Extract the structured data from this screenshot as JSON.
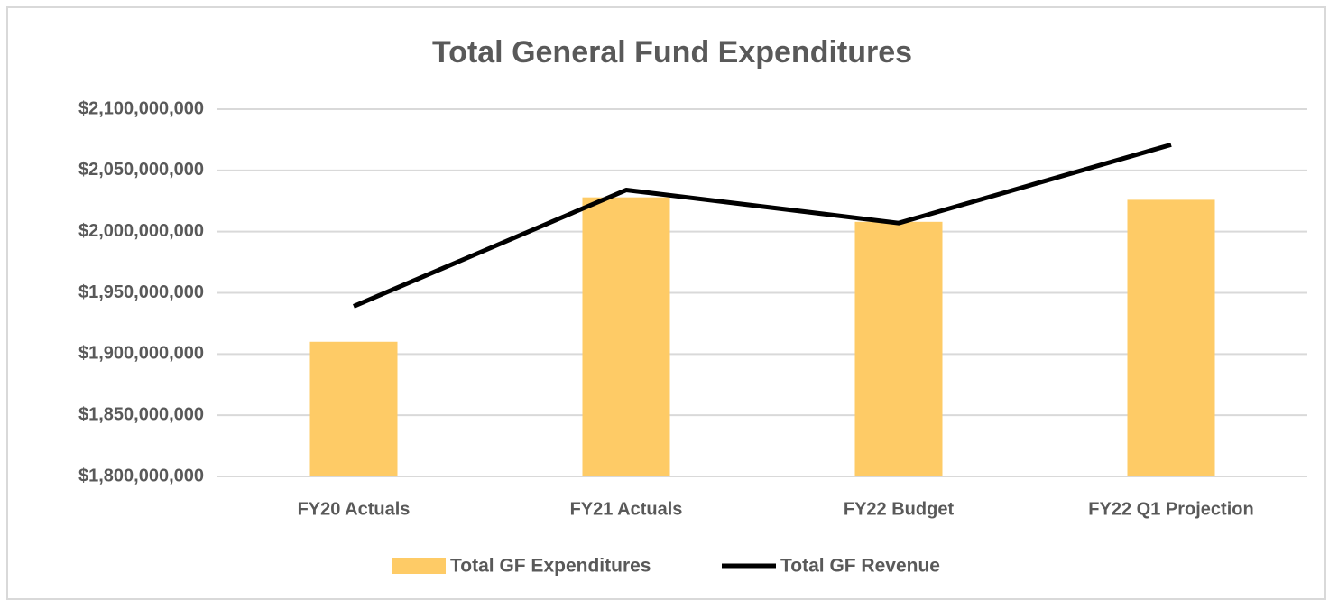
{
  "chart_data": {
    "type": "bar",
    "title": "Total General Fund Expenditures",
    "categories": [
      "FY20 Actuals",
      "FY21 Actuals",
      "FY22 Budget",
      "FY22 Q1 Projection"
    ],
    "series": [
      {
        "name": "Total GF Expenditures",
        "type": "bar",
        "color": "#fecb66",
        "values": [
          1910000000,
          2028000000,
          2008000000,
          2026000000
        ]
      },
      {
        "name": "Total GF Revenue",
        "type": "line",
        "color": "#000000",
        "values": [
          1939000000,
          2034000000,
          2007000000,
          2071000000
        ]
      }
    ],
    "ylim": [
      1800000000,
      2100000000
    ],
    "yticks": [
      {
        "value": 1800000000,
        "label": "$1,800,000,000"
      },
      {
        "value": 1850000000,
        "label": "$1,850,000,000"
      },
      {
        "value": 1900000000,
        "label": "$1,900,000,000"
      },
      {
        "value": 1950000000,
        "label": "$1,950,000,000"
      },
      {
        "value": 2000000000,
        "label": "$2,000,000,000"
      },
      {
        "value": 2050000000,
        "label": "$2,050,000,000"
      },
      {
        "value": 2100000000,
        "label": "$2,100,000,000"
      }
    ],
    "grid": true,
    "legend": "bottom"
  }
}
